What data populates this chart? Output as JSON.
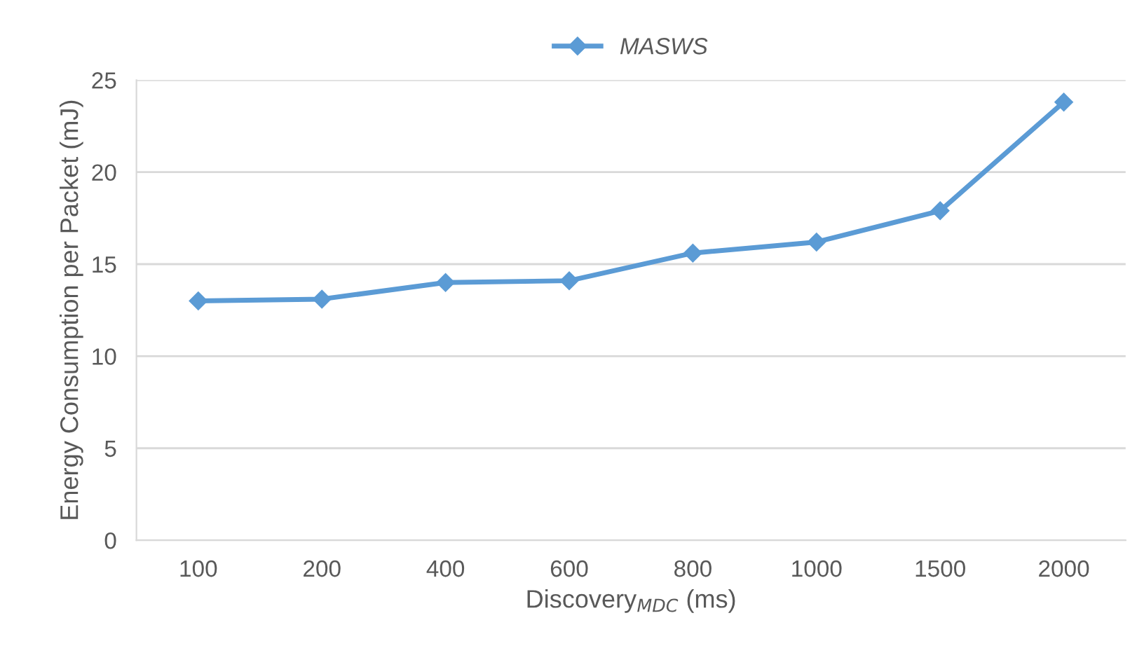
{
  "chart_data": {
    "type": "line",
    "categories": [
      "100",
      "200",
      "400",
      "600",
      "800",
      "1000",
      "1500",
      "2000"
    ],
    "series": [
      {
        "name": "MASWS",
        "color": "#5b9bd5",
        "values": [
          13.0,
          13.1,
          14.0,
          14.1,
          15.6,
          16.2,
          17.9,
          23.8
        ]
      }
    ],
    "xlabel": "Discovery$_{MDC}$ (ms)",
    "ylabel": "Energy Consumption per Packet (mJ)",
    "ylim": [
      0,
      25
    ],
    "yticks": [
      0,
      5,
      10,
      15,
      20,
      25
    ],
    "grid": "y",
    "legend": "top",
    "marker": "diamond",
    "line_style": "solid"
  }
}
